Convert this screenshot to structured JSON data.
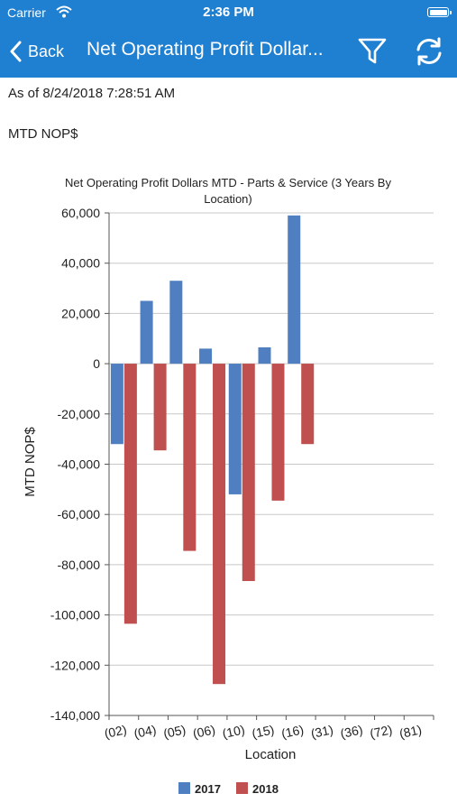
{
  "status_bar": {
    "carrier": "Carrier",
    "time": "2:36 PM"
  },
  "nav": {
    "back_label": "Back",
    "title": "Net Operating Profit Dollar..."
  },
  "content": {
    "as_of": "As of 8/24/2018 7:28:51 AM",
    "subheading": "MTD NOP$"
  },
  "colors": {
    "accent": "#1f7fd0",
    "series_2017": "#4f7fc0",
    "series_2018": "#c04f4f"
  },
  "icons": {
    "back": "chevron-left-icon",
    "filter": "filter-icon",
    "refresh": "refresh-icon",
    "wifi": "wifi-icon",
    "battery": "battery-icon"
  },
  "chart_data": {
    "type": "bar",
    "title": "Net Operating Profit Dollars MTD - Parts & Service (3 Years By Location)",
    "title_lines": [
      "Net Operating Profit Dollars MTD - Parts & Service (3 Years By",
      "Location)"
    ],
    "xlabel": "Location",
    "ylabel": "MTD NOP$",
    "categories": [
      "(02)",
      "(04)",
      "(05)",
      "(06)",
      "(10)",
      "(15)",
      "(16)",
      "(31)",
      "(36)",
      "(72)",
      "(81)"
    ],
    "series": [
      {
        "name": "2017",
        "color": "#4f7fc0",
        "values": [
          -32000,
          25000,
          33000,
          6000,
          -52000,
          6500,
          59000,
          null,
          null,
          null,
          null
        ]
      },
      {
        "name": "2018",
        "color": "#c04f4f",
        "values": [
          -103500,
          -34500,
          -74500,
          -127500,
          -86500,
          -54500,
          -32000,
          null,
          null,
          null,
          null
        ]
      }
    ],
    "ylim": [
      -140000,
      60000
    ],
    "yticks": [
      60000,
      40000,
      20000,
      0,
      -20000,
      -40000,
      -60000,
      -80000,
      -100000,
      -120000,
      -140000
    ],
    "ytick_labels": [
      "60,000",
      "40,000",
      "20,000",
      "0",
      "-20,000",
      "-40,000",
      "-60,000",
      "-80,000",
      "-100,000",
      "-120,000",
      "-140,000"
    ],
    "grid": true,
    "legend_position": "bottom-center"
  }
}
